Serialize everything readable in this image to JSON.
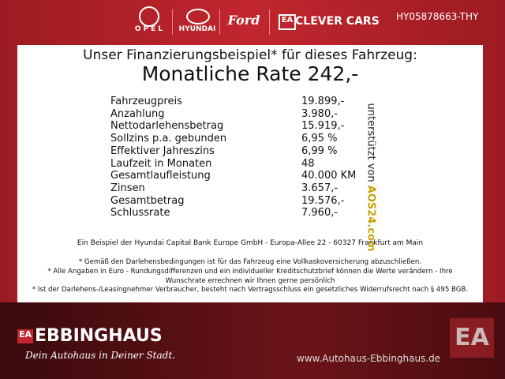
{
  "header": {
    "brands": [
      "OPEL",
      "HYUNDAI",
      "Ford",
      "CLEVER CARS"
    ],
    "code": "HY05878663-THY"
  },
  "panel": {
    "heading": "Unser Finanzierungsbeispiel* für dieses Fahrzeug:",
    "rate": "Monatliche Rate 242,-",
    "rows": [
      [
        "Fahrzeugpreis",
        "19.899,-"
      ],
      [
        "Anzahlung",
        "3.980,-"
      ],
      [
        "Nettodarlehensbetrag",
        "15.919,-"
      ],
      [
        "Sollzins p.a. gebunden",
        "6,95 %"
      ],
      [
        "Effektiver Jahreszins",
        "6,99 %"
      ],
      [
        "Laufzeit in Monaten",
        "48"
      ],
      [
        "Gesamtlaufleistung",
        "40.000 KM"
      ],
      [
        "Zinsen",
        "3.657,-"
      ],
      [
        "Gesamtbetrag",
        "19.576,-"
      ],
      [
        "Schlussrate",
        "7.960,-"
      ]
    ],
    "bank": "Ein Beispiel der Hyundai Capital Bank Europe GmbH - Europa-Allee 22 - 60327 Frankfurt am Main",
    "notes": [
      "* Gemäß den Darlehensbedingungen ist für das Fahrzeug eine Vollkaskoversicherung abzuschließen.",
      "* Alle Angaben in Euro - Rundungsdifferenzen und ein individueller Kreditschutzbrief können die Werte verändern - Ihre Wunschrate errechnen wir Ihnen gerne persönlich",
      "* Ist der Darlehens-/Leasingnehmer Verbraucher, besteht nach Vertragsschluss ein gesetzliches Widerrufsrecht nach § 495 BGB."
    ],
    "sponsor": "unterstützt von",
    "sponsor_brand": "AOS24.com"
  },
  "footer": {
    "dealer": "EBBINGHAUS",
    "slogan": "Dein Autohaus in Deiner Stadt.",
    "url": "www.Autohaus-Ebbinghaus.de"
  }
}
